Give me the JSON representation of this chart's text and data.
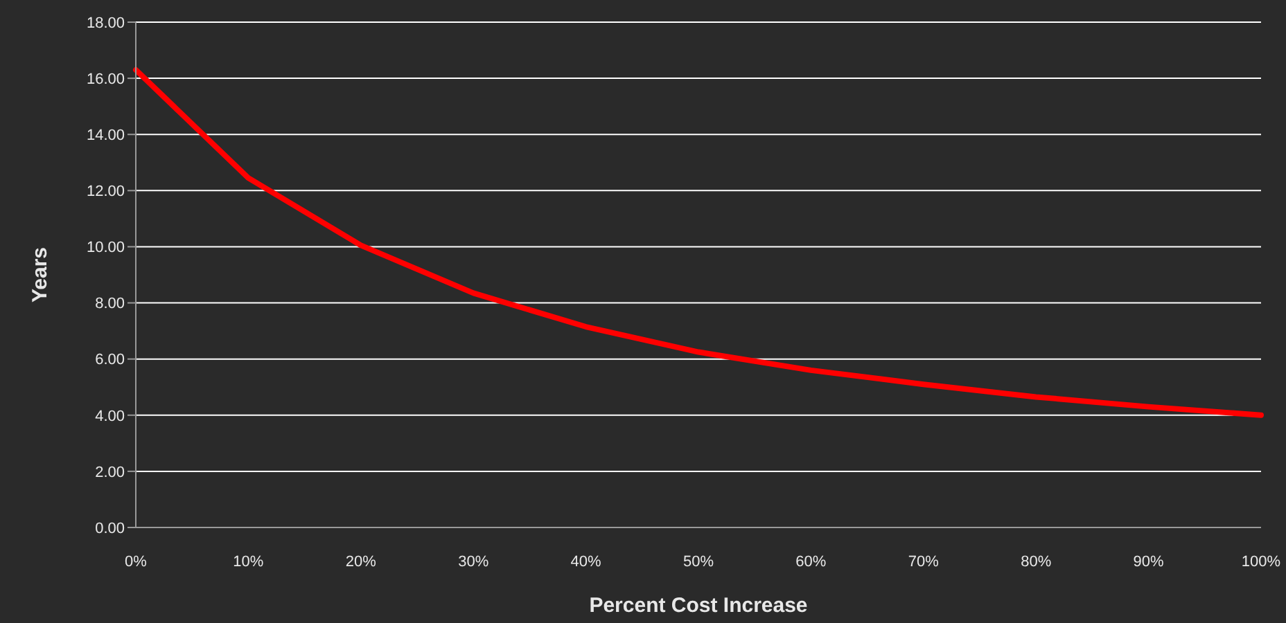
{
  "chart_data": {
    "type": "line",
    "xlabel": "Percent Cost Increase",
    "ylabel": "Years",
    "categories": [
      "0%",
      "10%",
      "20%",
      "30%",
      "40%",
      "50%",
      "60%",
      "70%",
      "80%",
      "90%",
      "100%"
    ],
    "series": [
      {
        "color": "#ff0000",
        "values": [
          16.3,
          12.45,
          10.05,
          8.35,
          7.15,
          6.25,
          5.6,
          5.1,
          4.65,
          4.3,
          4.0
        ]
      }
    ],
    "ylim": [
      0,
      18
    ],
    "yticks": [
      {
        "value": 0,
        "label": "0.00"
      },
      {
        "value": 2,
        "label": "2.00"
      },
      {
        "value": 4,
        "label": "4.00"
      },
      {
        "value": 6,
        "label": "6.00"
      },
      {
        "value": 8,
        "label": "8.00"
      },
      {
        "value": 10,
        "label": "10.00"
      },
      {
        "value": 12,
        "label": "12.00"
      },
      {
        "value": 14,
        "label": "14.00"
      },
      {
        "value": 16,
        "label": "16.00"
      },
      {
        "value": 18,
        "label": "18.00"
      }
    ],
    "grid": "y",
    "legend": false,
    "marker": "none",
    "line_style": "solid"
  }
}
